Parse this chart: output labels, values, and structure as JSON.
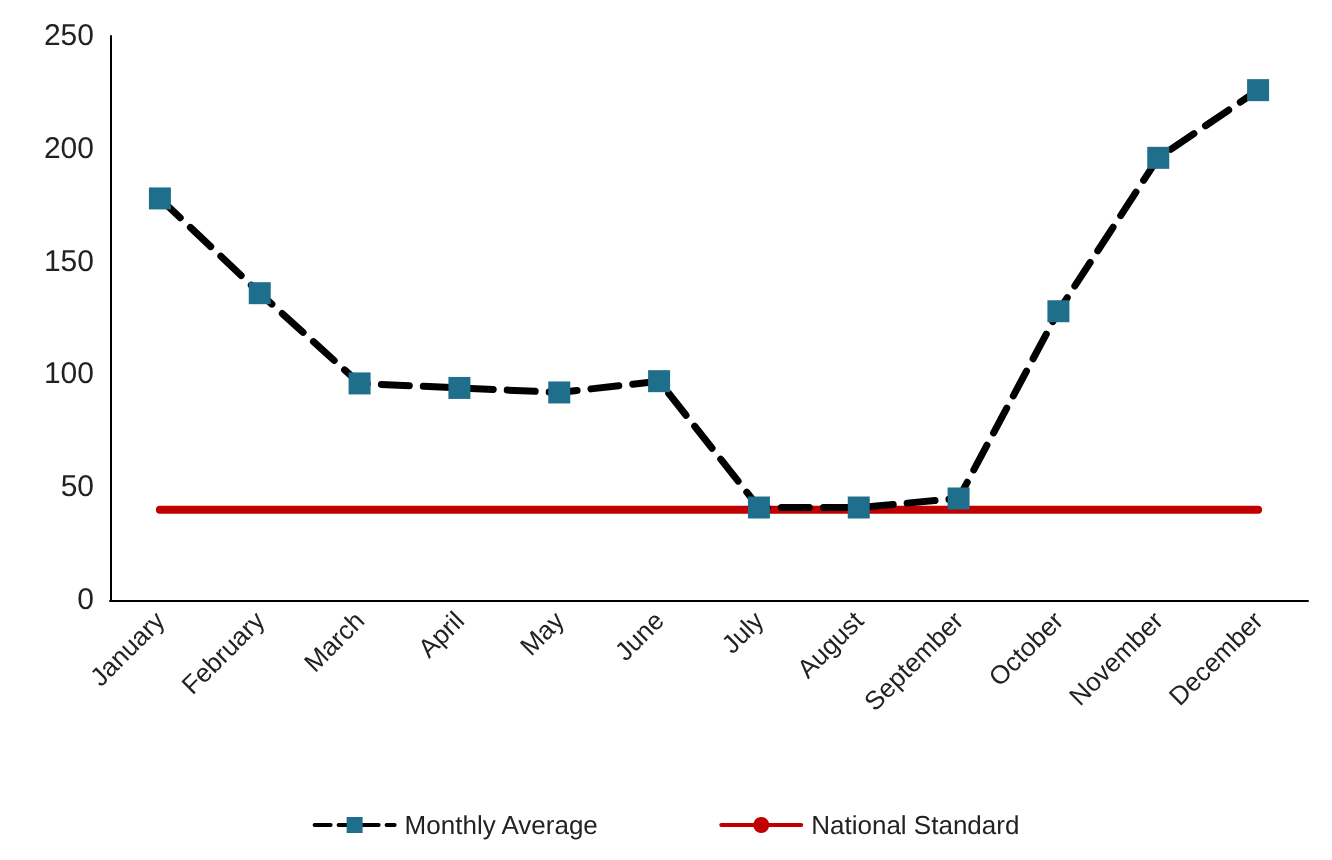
{
  "chart_data": {
    "type": "line",
    "categories": [
      "January",
      "February",
      "March",
      "April",
      "May",
      "June",
      "July",
      "August",
      "September",
      "October",
      "November",
      "December"
    ],
    "series": [
      {
        "name": "Monthly Average",
        "color": "#1f6e8c",
        "marker": "square",
        "line_style": "dashed",
        "values": [
          178,
          136,
          96,
          94,
          92,
          97,
          41,
          41,
          45,
          128,
          196,
          226
        ]
      },
      {
        "name": "National Standard",
        "color": "#c00000",
        "marker": "none",
        "line_style": "solid",
        "values": [
          40,
          40,
          40,
          40,
          40,
          40,
          40,
          40,
          40,
          40,
          40,
          40
        ]
      }
    ],
    "ylim": [
      0,
      250
    ],
    "yticks": [
      0,
      50,
      100,
      150,
      200,
      250
    ],
    "grid": false,
    "legend": "bottom"
  }
}
